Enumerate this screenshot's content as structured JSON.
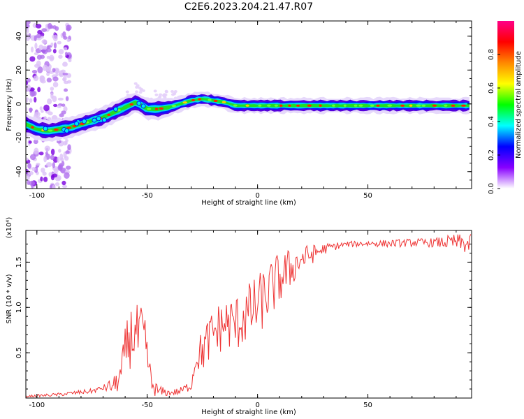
{
  "figure": {
    "title": "C2E6.2023.204.21.47.R07"
  },
  "chart_data": [
    {
      "type": "heatmap",
      "xlabel": "Height of straight line (km)",
      "ylabel": "Frequency (Hz)",
      "xlim": [
        -105,
        97
      ],
      "ylim": [
        -50,
        49
      ],
      "x_ticks": [
        -100,
        -50,
        0,
        50
      ],
      "y_ticks": [
        -40,
        -20,
        0,
        20,
        40
      ],
      "colorbar": {
        "label": "Normalized spectral amplitude",
        "range": [
          0.0,
          1.0
        ],
        "ticks": [
          0.0,
          0.2,
          0.4,
          0.6,
          0.8
        ],
        "colors": [
          "#ffffff",
          "#8800ff",
          "#0000ff",
          "#00ffff",
          "#00ff00",
          "#ffff00",
          "#ff8800",
          "#ff0000",
          "#ff0088"
        ]
      },
      "ridge": {
        "x": [
          -105,
          -100,
          -95,
          -90,
          -85,
          -80,
          -75,
          -70,
          -65,
          -60,
          -55,
          -50,
          -45,
          -40,
          -35,
          -30,
          -25,
          -20,
          -15,
          -10,
          -5,
          0,
          10,
          20,
          30,
          40,
          50,
          60,
          70,
          80,
          90,
          97
        ],
        "y": [
          -12,
          -15,
          -16,
          -15,
          -14,
          -12,
          -10,
          -8,
          -5,
          -2,
          1,
          -3,
          -3,
          -2,
          0,
          2,
          3,
          2,
          1,
          -1,
          -1,
          -1,
          -1,
          -1,
          -1,
          -1,
          -1,
          -1,
          -1,
          -1,
          -1,
          -1
        ]
      },
      "scatter_noise_region_x": [
        -105,
        -85
      ]
    },
    {
      "type": "line",
      "xlabel": "Height of straight line (km)",
      "ylabel": "SNR (10 * v/v)",
      "scale_label": "(x10⁴)",
      "xlim": [
        -105,
        97
      ],
      "ylim": [
        0,
        1.85
      ],
      "x_ticks": [
        -100,
        -50,
        0,
        50
      ],
      "y_ticks": [
        0.5,
        1.0,
        1.5
      ],
      "color": "#ee3333",
      "envelope": {
        "x": [
          -105,
          -90,
          -75,
          -65,
          -62,
          -60,
          -58,
          -56,
          -54,
          -52,
          -50,
          -48,
          -45,
          -40,
          -35,
          -30,
          -28,
          -25,
          -20,
          -15,
          -10,
          -5,
          0,
          5,
          10,
          15,
          20,
          25,
          30,
          35,
          40,
          50,
          60,
          70,
          80,
          90,
          97
        ],
        "y": [
          0.02,
          0.04,
          0.08,
          0.15,
          0.25,
          0.55,
          0.7,
          0.75,
          0.7,
          0.72,
          0.5,
          0.15,
          0.08,
          0.06,
          0.08,
          0.15,
          0.45,
          0.55,
          0.75,
          0.85,
          0.85,
          0.95,
          1.05,
          1.2,
          1.35,
          1.45,
          1.55,
          1.6,
          1.65,
          1.68,
          1.7,
          1.71,
          1.71,
          1.72,
          1.72,
          1.73,
          1.7
        ]
      },
      "noise_amplitude": {
        "x": [
          -105,
          -70,
          -62,
          -58,
          -52,
          -48,
          -40,
          -30,
          -25,
          -15,
          0,
          10,
          20,
          30,
          40,
          80,
          97
        ],
        "y": [
          0.01,
          0.03,
          0.15,
          0.35,
          0.35,
          0.1,
          0.03,
          0.06,
          0.25,
          0.3,
          0.35,
          0.3,
          0.15,
          0.06,
          0.03,
          0.05,
          0.12
        ]
      }
    }
  ]
}
